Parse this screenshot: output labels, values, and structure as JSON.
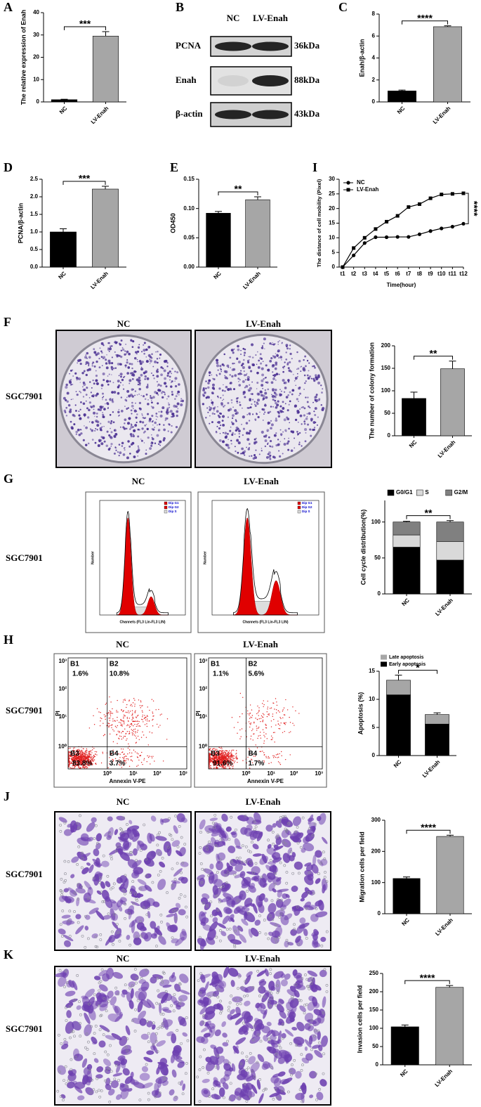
{
  "chart_data": [
    {
      "type": "bar",
      "label": "A",
      "ylabel": "The relative expression of Enah",
      "categories": [
        "NC",
        "LV-Enah"
      ],
      "values": [
        1,
        29.5
      ],
      "errors": [
        0.2,
        2
      ],
      "colors": [
        "#000000",
        "#a6a6a6"
      ],
      "ylim": [
        0,
        40
      ],
      "yticks": [
        0,
        10,
        20,
        30,
        40
      ],
      "significance": "***"
    },
    {
      "type": "bar",
      "label": "C",
      "ylabel": "Enah/β-actin",
      "categories": [
        "NC",
        "LV-Enah"
      ],
      "values": [
        1,
        6.85
      ],
      "errors": [
        0.08,
        0.08
      ],
      "colors": [
        "#000000",
        "#a6a6a6"
      ],
      "ylim": [
        0,
        8
      ],
      "yticks": [
        0,
        2,
        4,
        6,
        8
      ],
      "significance": "****"
    },
    {
      "type": "bar",
      "label": "D",
      "ylabel": "PCNA/β-actin",
      "categories": [
        "NC",
        "LV-Enah"
      ],
      "values": [
        1,
        2.22
      ],
      "errors": [
        0.09,
        0.08
      ],
      "colors": [
        "#000000",
        "#a6a6a6"
      ],
      "ylim": [
        0,
        2.5
      ],
      "yticks": [
        {
          "value": 0,
          "label": "0.0"
        },
        0.5,
        {
          "value": 1,
          "label": "1.0"
        },
        1.5,
        {
          "value": 2,
          "label": "2.0"
        },
        2.5
      ],
      "significance": "***"
    },
    {
      "type": "bar",
      "label": "E",
      "ylabel": "OD450",
      "categories": [
        "NC",
        "LV-Enah"
      ],
      "values": [
        0.092,
        0.115
      ],
      "errors": [
        0.003,
        0.005
      ],
      "colors": [
        "#000000",
        "#a6a6a6"
      ],
      "ylim": [
        0,
        0.15
      ],
      "yticks": [
        {
          "value": 0,
          "label": "0.00"
        },
        {
          "value": 0.05,
          "label": "0.05"
        },
        {
          "value": 0.1,
          "label": "0.10"
        },
        {
          "value": 0.15,
          "label": "0.15"
        }
      ],
      "significance": "**"
    },
    {
      "type": "line",
      "label": "I",
      "ylabel": "The distance of cell mobility (Pixel)",
      "xlabel": "Time(hour)",
      "categories": [
        "t1",
        "t2",
        "t3",
        "t4",
        "t5",
        "t6",
        "t7",
        "t8",
        "t9",
        "t10",
        "t11",
        "t12"
      ],
      "series": [
        {
          "name": "NC",
          "color": "#000000",
          "marker": "circle",
          "values": [
            0,
            4,
            8.2,
            10.2,
            10.2,
            10.3,
            10.3,
            11.2,
            12.3,
            13.2,
            13.8,
            14.8
          ]
        },
        {
          "name": "LV-Enah",
          "color": "#000000",
          "marker": "square",
          "values": [
            0,
            6.5,
            10,
            13,
            15.5,
            17.5,
            20.5,
            21.5,
            23.5,
            24.8,
            25,
            25.2
          ]
        }
      ],
      "ylim": [
        0,
        30
      ],
      "yticks": [
        0,
        5,
        10,
        15,
        20,
        25,
        30
      ],
      "significance": "****",
      "legend": "top-left"
    },
    {
      "type": "bar",
      "ylabel": "The number of colony formation",
      "categories": [
        "NC",
        "LV-Enah"
      ],
      "values": [
        83,
        149
      ],
      "errors": [
        14,
        17
      ],
      "colors": [
        "#000000",
        "#a6a6a6"
      ],
      "ylim": [
        0,
        200
      ],
      "yticks": [
        0,
        50,
        100,
        150,
        200
      ],
      "significance": "**"
    },
    {
      "type": "stacked_bar",
      "ylabel": "Cell cycle distribution(%)",
      "categories": [
        "NC",
        "LV-Enah"
      ],
      "series": [
        {
          "name": "G0/G1",
          "color": "#000000",
          "values": [
            65,
            47
          ],
          "errors": [
            2,
            2
          ]
        },
        {
          "name": "S",
          "color": "#d9d9d9",
          "values": [
            17,
            26
          ]
        },
        {
          "name": "G2/M",
          "color": "#808080",
          "values": [
            18,
            27
          ],
          "errors": [
            1,
            2
          ]
        }
      ],
      "ylim": [
        0,
        130
      ],
      "yticks": [
        0,
        50,
        100
      ],
      "significance": "**",
      "legend": "top"
    },
    {
      "type": "stacked_bar",
      "ylabel": "Apoptosis (%)",
      "categories": [
        "NC",
        "LV-Enah"
      ],
      "series": [
        {
          "name": "Early apoptosis",
          "color": "#000000",
          "values": [
            10.8,
            5.6
          ],
          "errors": [
            0.6,
            0.4
          ]
        },
        {
          "name": "Late apoptosis",
          "color": "#a6a6a6",
          "values": [
            2.6,
            1.7
          ],
          "errors": [
            0.9,
            0.3
          ]
        }
      ],
      "ylim": [
        0,
        15
      ],
      "yticks": [
        0,
        5,
        10,
        15
      ],
      "significance": "*",
      "legend": "top-left"
    },
    {
      "type": "bar",
      "ylabel": "Migration cells per field",
      "categories": [
        "NC",
        "LV-Enah"
      ],
      "values": [
        113,
        248
      ],
      "errors": [
        5,
        4
      ],
      "colors": [
        "#000000",
        "#a6a6a6"
      ],
      "ylim": [
        0,
        300
      ],
      "yticks": [
        0,
        100,
        200,
        300
      ],
      "significance": "****"
    },
    {
      "type": "bar",
      "ylabel": "Invasion cells per field",
      "categories": [
        "NC",
        "LV-Enah"
      ],
      "values": [
        104,
        212
      ],
      "errors": [
        5,
        5
      ],
      "colors": [
        "#000000",
        "#a6a6a6"
      ],
      "ylim": [
        0,
        250
      ],
      "yticks": [
        0,
        50,
        100,
        150,
        200,
        250
      ],
      "significance": "****"
    }
  ],
  "blot": {
    "label": "B",
    "columns": [
      "NC",
      "LV-Enah"
    ],
    "rows": [
      {
        "name": "PCNA",
        "size": "36kDa"
      },
      {
        "name": "Enah",
        "size": "88kDa"
      },
      {
        "name": "β-actin",
        "size": "43kDa"
      }
    ]
  },
  "panels": [
    {
      "label": "F",
      "row": "SGC7901",
      "columns": [
        "NC",
        "LV-Enah"
      ]
    },
    {
      "label": "G",
      "row": "SGC7901",
      "columns": [
        "NC",
        "LV-Enah"
      ]
    },
    {
      "label": "H",
      "row": "SGC7901",
      "columns": [
        "NC",
        "LV-Enah"
      ]
    },
    {
      "label": "J",
      "row": "SGC7901",
      "columns": [
        "NC",
        "LV-Enah"
      ]
    },
    {
      "label": "K",
      "row": "SGC7901",
      "columns": [
        "NC",
        "LV-Enah"
      ]
    }
  ],
  "cell_cycle_plot": {
    "xlabel": "Channels (FL3 Lin-FL3 LIN)",
    "ylabel": "Number",
    "legend": [
      "Dip G1",
      "Dip G2",
      "Dip S"
    ]
  },
  "flow": {
    "xlabel": "Annexin V-PE",
    "ylabel": "PI",
    "ticks": [
      "10⁰",
      "10¹",
      "10²",
      "10³"
    ],
    "plots": [
      {
        "quadrants": [
          {
            "name": "B1",
            "value": "1.6%"
          },
          {
            "name": "B2",
            "value": "10.8%"
          },
          {
            "name": "B3",
            "value": "83.8%"
          },
          {
            "name": "B4",
            "value": "3.7%"
          }
        ]
      },
      {
        "quadrants": [
          {
            "name": "B1",
            "value": "1.1%"
          },
          {
            "name": "B2",
            "value": "5.6%"
          },
          {
            "name": "B3",
            "value": "91.6%"
          },
          {
            "name": "B4",
            "value": "1.7%"
          }
        ]
      }
    ]
  }
}
